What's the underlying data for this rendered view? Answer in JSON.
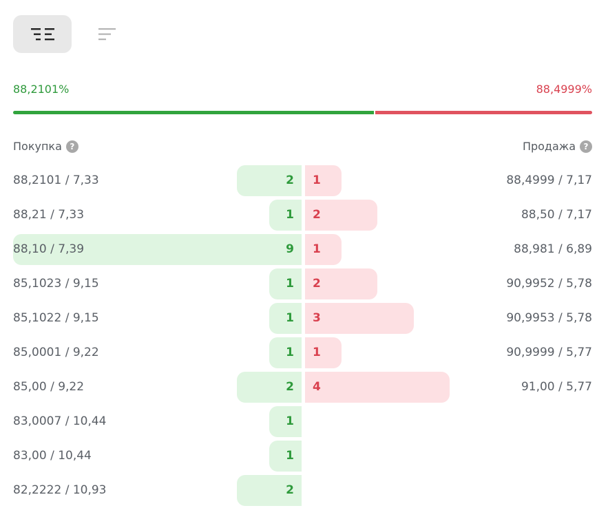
{
  "toolbar": {
    "view_active_icon": "order-book-both-icon",
    "view_alt_icon": "order-book-list-icon"
  },
  "summary": {
    "buy_percent": "88,2101%",
    "sell_percent": "88,4999%",
    "buy_ratio": 0.623
  },
  "headers": {
    "buy_label": "Покупка",
    "sell_label": "Продажа",
    "help_glyph": "?"
  },
  "colors": {
    "buy": "#2f9a3c",
    "sell": "#d9414f",
    "buy_bar": "#dff5e1",
    "sell_bar": "#fde0e3"
  },
  "max_count": 9,
  "rows": [
    {
      "buy_price": "88,2101 / 7,33",
      "buy_count": "2",
      "sell_count": "1",
      "sell_price": "88,4999 / 7,17"
    },
    {
      "buy_price": "88,21 / 7,33",
      "buy_count": "1",
      "sell_count": "2",
      "sell_price": "88,50 / 7,17"
    },
    {
      "buy_price": "88,10 / 7,39",
      "buy_count": "9",
      "sell_count": "1",
      "sell_price": "88,981 / 6,89"
    },
    {
      "buy_price": "85,1023 / 9,15",
      "buy_count": "1",
      "sell_count": "2",
      "sell_price": "90,9952 / 5,78"
    },
    {
      "buy_price": "85,1022 / 9,15",
      "buy_count": "1",
      "sell_count": "3",
      "sell_price": "90,9953 / 5,78"
    },
    {
      "buy_price": "85,0001 / 9,22",
      "buy_count": "1",
      "sell_count": "1",
      "sell_price": "90,9999 / 5,77"
    },
    {
      "buy_price": "85,00 / 9,22",
      "buy_count": "2",
      "sell_count": "4",
      "sell_price": "91,00 / 5,77"
    },
    {
      "buy_price": "83,0007 / 10,44",
      "buy_count": "1",
      "sell_count": "",
      "sell_price": ""
    },
    {
      "buy_price": "83,00 / 10,44",
      "buy_count": "1",
      "sell_count": "",
      "sell_price": ""
    },
    {
      "buy_price": "82,2222 / 10,93",
      "buy_count": "2",
      "sell_count": "",
      "sell_price": ""
    }
  ]
}
